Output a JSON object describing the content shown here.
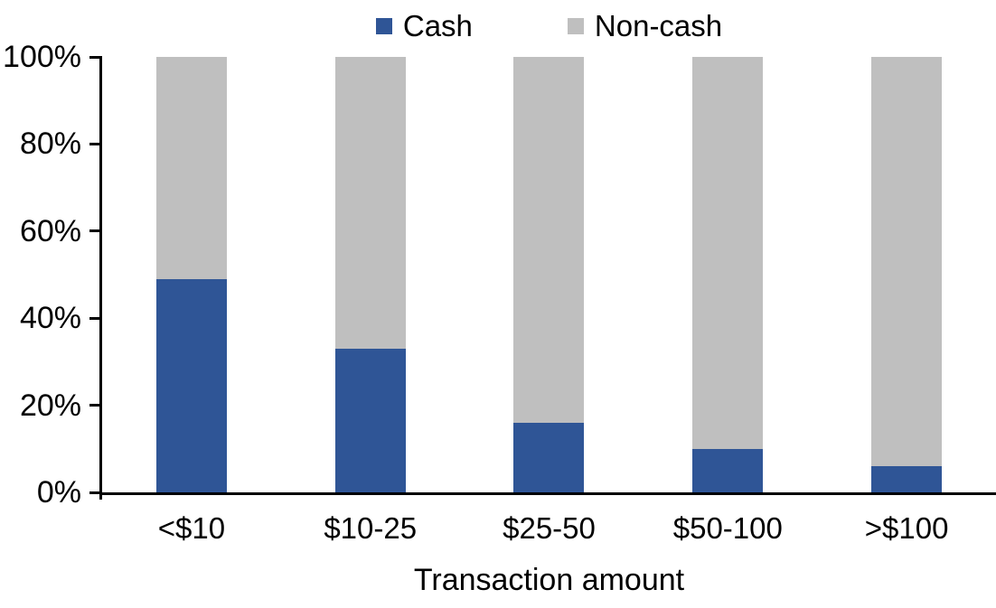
{
  "chart_data": {
    "type": "bar",
    "subtype": "stacked-100",
    "categories": [
      "<$10",
      "$10-25",
      "$25-50",
      "$50-100",
      ">$100"
    ],
    "series": [
      {
        "name": "Cash",
        "color": "#2F5596",
        "values": [
          49,
          33,
          16,
          10,
          6
        ]
      },
      {
        "name": "Non-cash",
        "color": "#BFBFBF",
        "values": [
          51,
          67,
          84,
          90,
          94
        ]
      }
    ],
    "title": "",
    "xlabel": "Transaction amount",
    "ylabel": "",
    "ylim": [
      0,
      100
    ],
    "yticks": [
      "0%",
      "20%",
      "40%",
      "60%",
      "80%",
      "100%"
    ],
    "grid": false,
    "legend_position": "top-center",
    "axis_color": "#000000",
    "background_color": "#FFFFFF"
  }
}
